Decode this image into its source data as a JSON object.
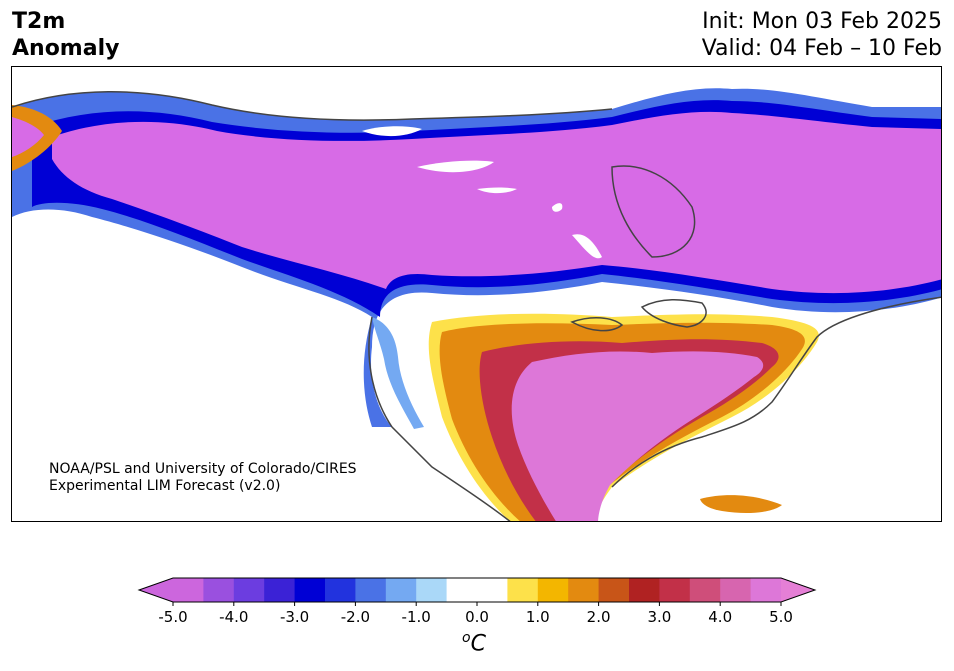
{
  "title": {
    "line1": "T2m",
    "line2": "Anomaly",
    "init": "Init: Mon 03 Feb 2025",
    "valid": "Valid: 04 Feb – 10 Feb"
  },
  "credit": {
    "line1": "NOAA/PSL and University of Colorado/CIRES",
    "line2": "Experimental LIM Forecast (v2.0)"
  },
  "colorbar": {
    "units_base": "C",
    "units_sup": "o",
    "ticks": [
      "-5.0",
      "-4.0",
      "-3.0",
      "-2.0",
      "-1.0",
      "0.0",
      "1.0",
      "2.0",
      "3.0",
      "4.0",
      "5.0"
    ],
    "colors": [
      "#cc66dd",
      "#9a50df",
      "#6c3de0",
      "#3b22d6",
      "#0000d5",
      "#2233de",
      "#4a72e6",
      "#74a9f2",
      "#aad8f8",
      "#ffffff",
      "#ffffff",
      "#fde14a",
      "#f3b600",
      "#e38a10",
      "#c85518",
      "#b02222",
      "#c23048",
      "#cf4e7a",
      "#d765af",
      "#dd77d8"
    ],
    "min_color": "#cc66dd",
    "max_color": "#e57fd6"
  },
  "map_colors": {
    "cold_max": "#d76be6",
    "land_line": "#444444"
  }
}
